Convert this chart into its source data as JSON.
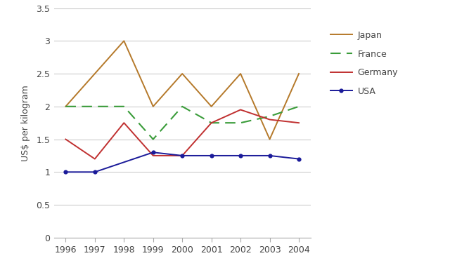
{
  "years": [
    1996,
    1997,
    1998,
    1999,
    2000,
    2001,
    2002,
    2003,
    2004
  ],
  "japan": [
    2.0,
    null,
    3.0,
    2.0,
    2.5,
    2.0,
    2.5,
    1.5,
    2.5
  ],
  "france": [
    2.0,
    2.0,
    2.0,
    1.5,
    2.0,
    1.75,
    1.75,
    1.85,
    2.0
  ],
  "germany": [
    1.5,
    1.2,
    1.75,
    1.25,
    1.25,
    1.75,
    1.95,
    1.8,
    1.75
  ],
  "usa": [
    1.0,
    1.0,
    null,
    1.3,
    1.25,
    1.25,
    1.25,
    1.25,
    1.2
  ],
  "japan_color": "#b5792a",
  "france_color": "#3a9c3a",
  "germany_color": "#c03030",
  "usa_color": "#1a1a99",
  "ylabel": "US$ per kilogram",
  "ylim": [
    0,
    3.5
  ],
  "yticks": [
    0,
    0.5,
    1.0,
    1.5,
    2.0,
    2.5,
    3.0,
    3.5
  ],
  "background_color": "#ffffff",
  "grid_color": "#cccccc",
  "tick_color": "#aaaaaa",
  "spine_color": "#aaaaaa",
  "label_fontsize": 9,
  "tick_fontsize": 9
}
